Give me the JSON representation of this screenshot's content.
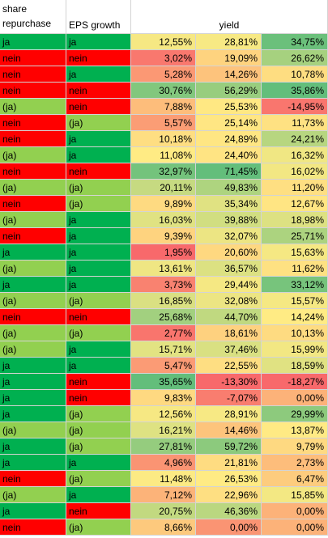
{
  "header": {
    "col_a": "share repurchase",
    "col_b": "EPS growth",
    "col_yield": "yield"
  },
  "colors": {
    "green_dark": "#00b050",
    "green_light": "#92d050",
    "red": "#ff0000"
  },
  "rows": [
    {
      "a": "ja",
      "b": "ja",
      "v1": "12,55%",
      "v2": "28,81%",
      "v3": "34,75%"
    },
    {
      "a": "nein",
      "b": "nein",
      "v1": "3,02%",
      "v2": "19,09%",
      "v3": "26,62%"
    },
    {
      "a": "nein",
      "b": "ja",
      "v1": "5,28%",
      "v2": "14,26%",
      "v3": "10,78%"
    },
    {
      "a": "nein",
      "b": "nein",
      "v1": "30,76%",
      "v2": "56,29%",
      "v3": "35,86%"
    },
    {
      "a": "(ja)",
      "b": "nein",
      "v1": "7,88%",
      "v2": "25,53%",
      "v3": "-14,95%"
    },
    {
      "a": "nein",
      "b": "(ja)",
      "v1": "5,57%",
      "v2": "25,14%",
      "v3": "11,73%"
    },
    {
      "a": "nein",
      "b": "ja",
      "v1": "10,18%",
      "v2": "24,89%",
      "v3": "24,21%"
    },
    {
      "a": "(ja)",
      "b": "ja",
      "v1": "11,08%",
      "v2": "24,40%",
      "v3": "16,32%"
    },
    {
      "a": "nein",
      "b": "nein",
      "v1": "32,97%",
      "v2": "71,45%",
      "v3": "16,02%"
    },
    {
      "a": "(ja)",
      "b": "(ja)",
      "v1": "20,11%",
      "v2": "49,83%",
      "v3": "11,20%"
    },
    {
      "a": "nein",
      "b": "(ja)",
      "v1": "9,89%",
      "v2": "35,34%",
      "v3": "12,67%"
    },
    {
      "a": "(ja)",
      "b": "ja",
      "v1": "16,03%",
      "v2": "39,88%",
      "v3": "18,98%"
    },
    {
      "a": "nein",
      "b": "ja",
      "v1": "9,39%",
      "v2": "32,07%",
      "v3": "25,71%"
    },
    {
      "a": "ja",
      "b": "ja",
      "v1": "1,95%",
      "v2": "20,60%",
      "v3": "15,63%"
    },
    {
      "a": "(ja)",
      "b": "ja",
      "v1": "13,61%",
      "v2": "36,57%",
      "v3": "11,62%"
    },
    {
      "a": "ja",
      "b": "ja",
      "v1": "3,73%",
      "v2": "29,44%",
      "v3": "33,12%"
    },
    {
      "a": "(ja)",
      "b": "(ja)",
      "v1": "16,85%",
      "v2": "32,08%",
      "v3": "15,57%"
    },
    {
      "a": "nein",
      "b": "nein",
      "v1": "25,68%",
      "v2": "44,70%",
      "v3": "14,24%"
    },
    {
      "a": "(ja)",
      "b": "(ja)",
      "v1": "2,77%",
      "v2": "18,61%",
      "v3": "10,13%"
    },
    {
      "a": "(ja)",
      "b": "ja",
      "v1": "15,71%",
      "v2": "37,46%",
      "v3": "15,99%"
    },
    {
      "a": "ja",
      "b": "ja",
      "v1": "5,47%",
      "v2": "22,55%",
      "v3": "18,59%"
    },
    {
      "a": "ja",
      "b": "nein",
      "v1": "35,65%",
      "v2": "-13,30%",
      "v3": "-18,27%"
    },
    {
      "a": "ja",
      "b": "nein",
      "v1": "9,83%",
      "v2": "-7,07%",
      "v3": "0,00%"
    },
    {
      "a": "ja",
      "b": "(ja)",
      "v1": "12,56%",
      "v2": "28,91%",
      "v3": "29,99%"
    },
    {
      "a": "(ja)",
      "b": "(ja)",
      "v1": "16,21%",
      "v2": "14,46%",
      "v3": "13,87%"
    },
    {
      "a": "ja",
      "b": "(ja)",
      "v1": "27,81%",
      "v2": "59,72%",
      "v3": "9,79%"
    },
    {
      "a": "ja",
      "b": "ja",
      "v1": "4,96%",
      "v2": "21,81%",
      "v3": "2,73%"
    },
    {
      "a": "nein",
      "b": "(ja)",
      "v1": "11,48%",
      "v2": "26,53%",
      "v3": "6,47%"
    },
    {
      "a": "(ja)",
      "b": "ja",
      "v1": "7,12%",
      "v2": "22,96%",
      "v3": "15,85%"
    },
    {
      "a": "ja",
      "b": "nein",
      "v1": "20,75%",
      "v2": "46,36%",
      "v3": "0,00%"
    },
    {
      "a": "nein",
      "b": "(ja)",
      "v1": "8,66%",
      "v2": "0,00%",
      "v3": "0,00%"
    }
  ]
}
